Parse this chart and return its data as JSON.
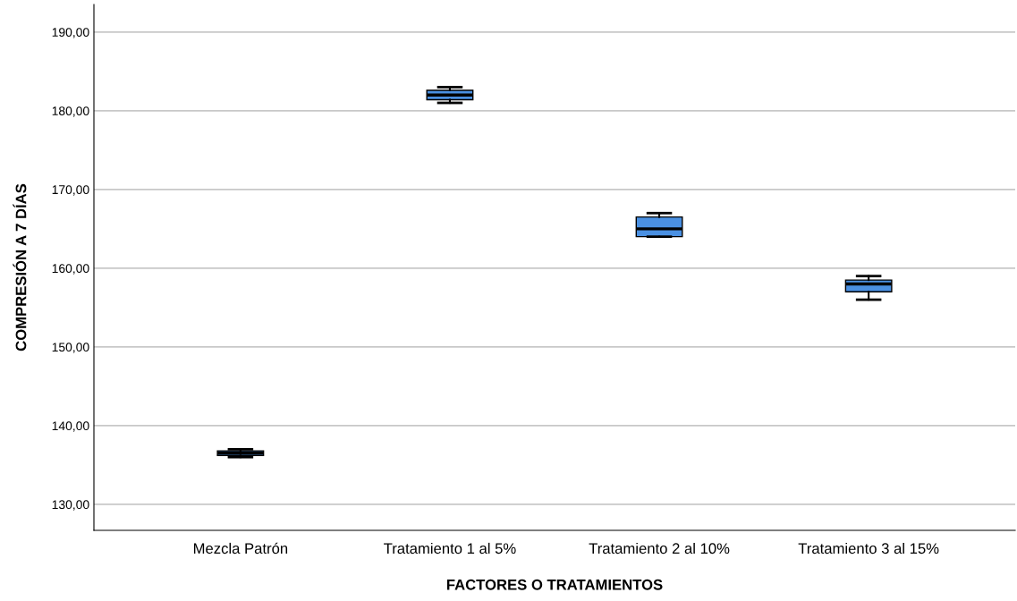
{
  "chart_data": {
    "type": "box",
    "xlabel": "FACTORES O TRATAMIENTOS",
    "ylabel": "COMPRESIÓN A 7 DÍAS",
    "categories": [
      "Mezcla Patrón",
      "Tratamiento 1 al 5%",
      "Tratamiento 2 al 10%",
      "Tratamiento 3 al 15%"
    ],
    "color": "#4a90e2",
    "grid": "y",
    "ylim": [
      126.7,
      193.5
    ],
    "yticks": [
      {
        "value": 130,
        "label": "130,00"
      },
      {
        "value": 140,
        "label": "140,00"
      },
      {
        "value": 150,
        "label": "150,00"
      },
      {
        "value": 160,
        "label": "160,00"
      },
      {
        "value": 170,
        "label": "170,00"
      },
      {
        "value": 180,
        "label": "180,00"
      },
      {
        "value": 190,
        "label": "190,00"
      }
    ],
    "boxes": [
      {
        "low": 136.0,
        "q1": 136.2,
        "median": 136.5,
        "q3": 136.8,
        "high": 137.0
      },
      {
        "low": 181.0,
        "q1": 181.4,
        "median": 182.0,
        "q3": 182.6,
        "high": 183.0
      },
      {
        "low": 164.0,
        "q1": 164.0,
        "median": 165.0,
        "q3": 166.5,
        "high": 167.0
      },
      {
        "low": 156.0,
        "q1": 157.0,
        "median": 158.0,
        "q3": 158.5,
        "high": 159.0
      }
    ]
  }
}
